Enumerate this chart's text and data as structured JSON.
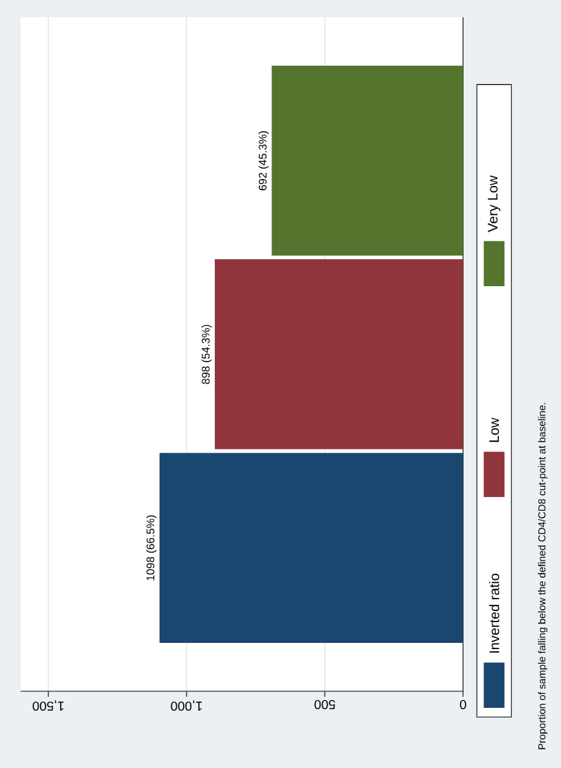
{
  "chart_data": {
    "type": "bar",
    "orientation": "horizontal",
    "categories": [
      null
    ],
    "series": [
      {
        "name": "Inverted ratio",
        "color": "#1a476f",
        "values": [
          1098
        ],
        "value_labels": [
          "1098 (66.5%)"
        ]
      },
      {
        "name": "Low",
        "color": "#90353b",
        "values": [
          898
        ],
        "value_labels": [
          "898 (54.3%)"
        ]
      },
      {
        "name": "Very Low",
        "color": "#55752f",
        "values": [
          692
        ],
        "value_labels": [
          "692 (45.3%)"
        ]
      }
    ],
    "xlim": [
      1600,
      0
    ],
    "xticks": [
      0,
      500,
      {
        "value": 1000,
        "label": "1,000"
      },
      {
        "value": 1500,
        "label": "1,500"
      }
    ],
    "grid": "x",
    "legend": "right",
    "annotations": [
      "Proportion of sample falling below the defined CD4/CD8 cut-point at baseline."
    ]
  }
}
